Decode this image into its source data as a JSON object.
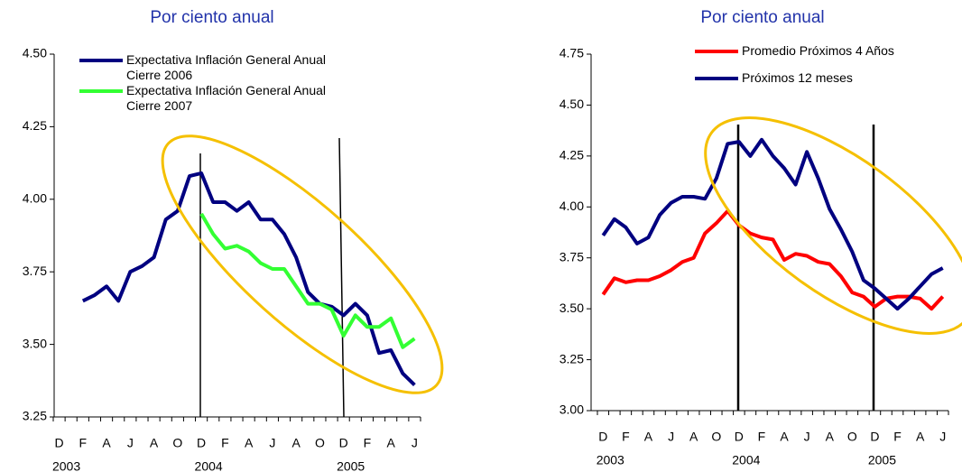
{
  "chart_data": [
    {
      "type": "line",
      "title": "Por ciento anual",
      "categories": [
        "D",
        null,
        "F",
        null,
        "A",
        null,
        "J",
        null,
        "A",
        null,
        "O",
        null,
        "D",
        null,
        "F",
        null,
        "A",
        null,
        "J",
        null,
        "A",
        null,
        "O",
        null,
        "D",
        null,
        "F",
        null,
        "A",
        null,
        "J"
      ],
      "years": [
        "2003",
        null,
        null,
        null,
        null,
        null,
        null,
        null,
        null,
        null,
        null,
        null,
        "2004",
        null,
        null,
        null,
        null,
        null,
        null,
        null,
        null,
        null,
        null,
        null,
        "2005",
        null,
        null,
        null,
        null,
        null,
        null
      ],
      "ylim": [
        3.25,
        4.5
      ],
      "yticks": [
        3.25,
        {
          "value": 3.5,
          "label": "3.50"
        },
        3.75,
        {
          "value": 4,
          "label": "4.00"
        },
        4.25,
        {
          "value": 4.5,
          "label": "4.50"
        }
      ],
      "series": [
        {
          "name": "Expectativa Inflación General Anual Cierre 2006",
          "color": "#000080",
          "values": [
            null,
            null,
            3.65,
            3.67,
            3.7,
            3.65,
            3.75,
            3.77,
            3.8,
            3.93,
            3.96,
            4.08,
            4.09,
            3.99,
            3.99,
            3.96,
            3.99,
            3.93,
            3.93,
            3.88,
            3.8,
            3.68,
            3.64,
            3.63,
            3.6,
            3.64,
            3.6,
            3.47,
            3.48,
            3.4,
            3.36
          ]
        },
        {
          "name": "Expectativa Inflación General Anual Cierre 2007",
          "color": "#33ff33",
          "values": [
            null,
            null,
            null,
            null,
            null,
            null,
            null,
            null,
            null,
            null,
            null,
            null,
            3.95,
            3.88,
            3.83,
            3.84,
            3.82,
            3.78,
            3.76,
            3.76,
            3.7,
            3.64,
            3.64,
            3.62,
            3.53,
            3.6,
            3.56,
            3.56,
            3.59,
            3.49,
            3.52
          ]
        }
      ]
    },
    {
      "type": "line",
      "title": "Por ciento anual",
      "categories": [
        "D",
        null,
        "F",
        null,
        "A",
        null,
        "J",
        null,
        "A",
        null,
        "O",
        null,
        "D",
        null,
        "F",
        null,
        "A",
        null,
        "J",
        null,
        "A",
        null,
        "O",
        null,
        "D",
        null,
        "F",
        null,
        "A",
        null,
        "J"
      ],
      "years": [
        "2003",
        null,
        null,
        null,
        null,
        null,
        null,
        null,
        null,
        null,
        null,
        null,
        "2004",
        null,
        null,
        null,
        null,
        null,
        null,
        null,
        null,
        null,
        null,
        null,
        "2005",
        null,
        null,
        null,
        null,
        null,
        null
      ],
      "ylim": [
        3,
        4.75
      ],
      "yticks": [
        {
          "value": 3,
          "label": "3.00"
        },
        3.25,
        {
          "value": 3.5,
          "label": "3.50"
        },
        3.75,
        {
          "value": 4,
          "label": "4.00"
        },
        4.25,
        {
          "value": 4.5,
          "label": "4.50"
        },
        4.75
      ],
      "series": [
        {
          "name": "Promedio Próximos 4 Años",
          "color": "#ff0000",
          "values": [
            3.57,
            3.65,
            3.63,
            3.64,
            3.64,
            3.66,
            3.69,
            3.73,
            3.75,
            3.87,
            3.92,
            3.98,
            3.91,
            3.87,
            3.85,
            3.84,
            3.74,
            3.77,
            3.76,
            3.73,
            3.72,
            3.66,
            3.58,
            3.56,
            3.51,
            3.55,
            3.56,
            3.56,
            3.55,
            3.5,
            3.56
          ]
        },
        {
          "name": "Próximos 12 meses",
          "color": "#000080",
          "values": [
            3.86,
            3.94,
            3.9,
            3.82,
            3.85,
            3.96,
            4.02,
            4.05,
            4.05,
            4.04,
            4.14,
            4.31,
            4.32,
            4.25,
            4.33,
            4.25,
            4.19,
            4.11,
            4.27,
            4.14,
            3.99,
            3.89,
            3.78,
            3.64,
            3.6,
            3.55,
            3.5,
            3.55,
            3.61,
            3.67,
            3.7
          ]
        }
      ]
    }
  ]
}
